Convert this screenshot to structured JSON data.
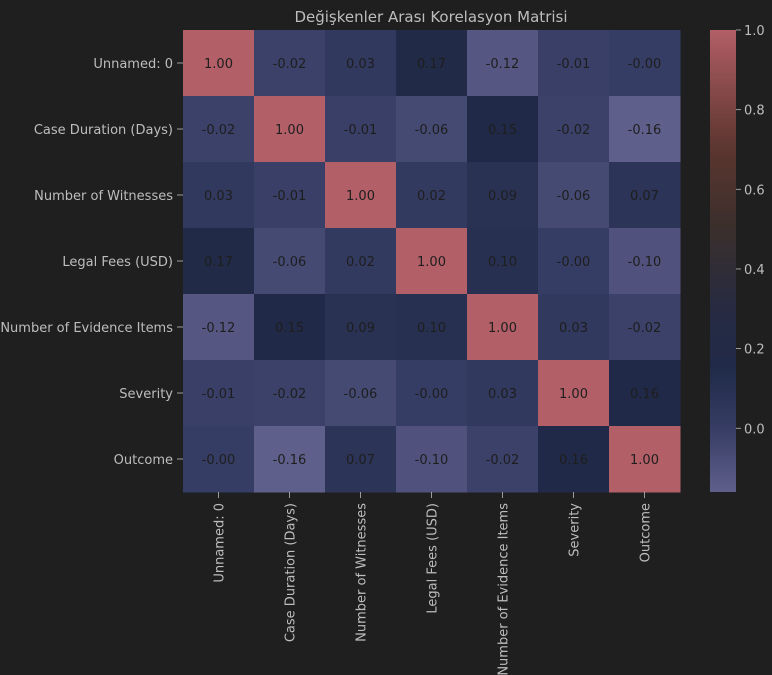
{
  "chart_data": {
    "type": "heatmap",
    "title": "Değişkenler Arası Korelasyon Matrisi",
    "labels": [
      "Unnamed: 0",
      "Case Duration (Days)",
      "Number of Witnesses",
      "Legal Fees (USD)",
      "Number of Evidence Items",
      "Severity",
      "Outcome"
    ],
    "values": [
      [
        1.0,
        -0.02,
        0.03,
        0.17,
        -0.12,
        -0.01,
        -0.0
      ],
      [
        -0.02,
        1.0,
        -0.01,
        -0.06,
        0.15,
        -0.02,
        -0.16
      ],
      [
        0.03,
        -0.01,
        1.0,
        0.02,
        0.09,
        -0.06,
        0.07
      ],
      [
        0.17,
        -0.06,
        0.02,
        1.0,
        0.1,
        -0.0,
        -0.1
      ],
      [
        -0.12,
        0.15,
        0.09,
        0.1,
        1.0,
        0.03,
        -0.02
      ],
      [
        -0.01,
        -0.02,
        -0.06,
        -0.0,
        0.03,
        1.0,
        0.16
      ],
      [
        -0.0,
        -0.16,
        0.07,
        -0.1,
        -0.02,
        0.16,
        1.0
      ]
    ],
    "cell_text": [
      [
        "1.00",
        "-0.02",
        "0.03",
        "0.17",
        "-0.12",
        "-0.01",
        "-0.00"
      ],
      [
        "-0.02",
        "1.00",
        "-0.01",
        "-0.06",
        "0.15",
        "-0.02",
        "-0.16"
      ],
      [
        "0.03",
        "-0.01",
        "1.00",
        "0.02",
        "0.09",
        "-0.06",
        "0.07"
      ],
      [
        "0.17",
        "-0.06",
        "0.02",
        "1.00",
        "0.10",
        "-0.00",
        "-0.10"
      ],
      [
        "-0.12",
        "0.15",
        "0.09",
        "0.10",
        "1.00",
        "0.03",
        "-0.02"
      ],
      [
        "-0.01",
        "-0.02",
        "-0.06",
        "-0.00",
        "0.03",
        "1.00",
        "0.16"
      ],
      [
        "-0.00",
        "-0.16",
        "0.07",
        "-0.10",
        "-0.02",
        "0.16",
        "1.00"
      ]
    ],
    "vmin": -0.16,
    "vmax": 1.0,
    "colorbar_ticks": [
      0.0,
      0.2,
      0.4,
      0.6,
      0.8,
      1.0
    ],
    "colorbar_tick_labels": [
      "0.0",
      "0.2",
      "0.4",
      "0.6",
      "0.8",
      "1.0"
    ],
    "colormap": [
      {
        "v": -0.16,
        "color": "#5f5f8c"
      },
      {
        "v": 0.0,
        "color": "#363d64"
      },
      {
        "v": 0.15,
        "color": "#202a48"
      },
      {
        "v": 0.3,
        "color": "#272b42"
      },
      {
        "v": 0.5,
        "color": "#3a2f2c"
      },
      {
        "v": 0.7,
        "color": "#5b352f"
      },
      {
        "v": 0.85,
        "color": "#864949"
      },
      {
        "v": 1.0,
        "color": "#b25f68"
      }
    ],
    "grid": false,
    "legend": "colorbar-right"
  },
  "colors": {
    "background": "#1f1f1f",
    "text": "#bdbdbd",
    "annotation_dark": "#1e1e1e",
    "annotation_light": "#e8e8e8"
  }
}
